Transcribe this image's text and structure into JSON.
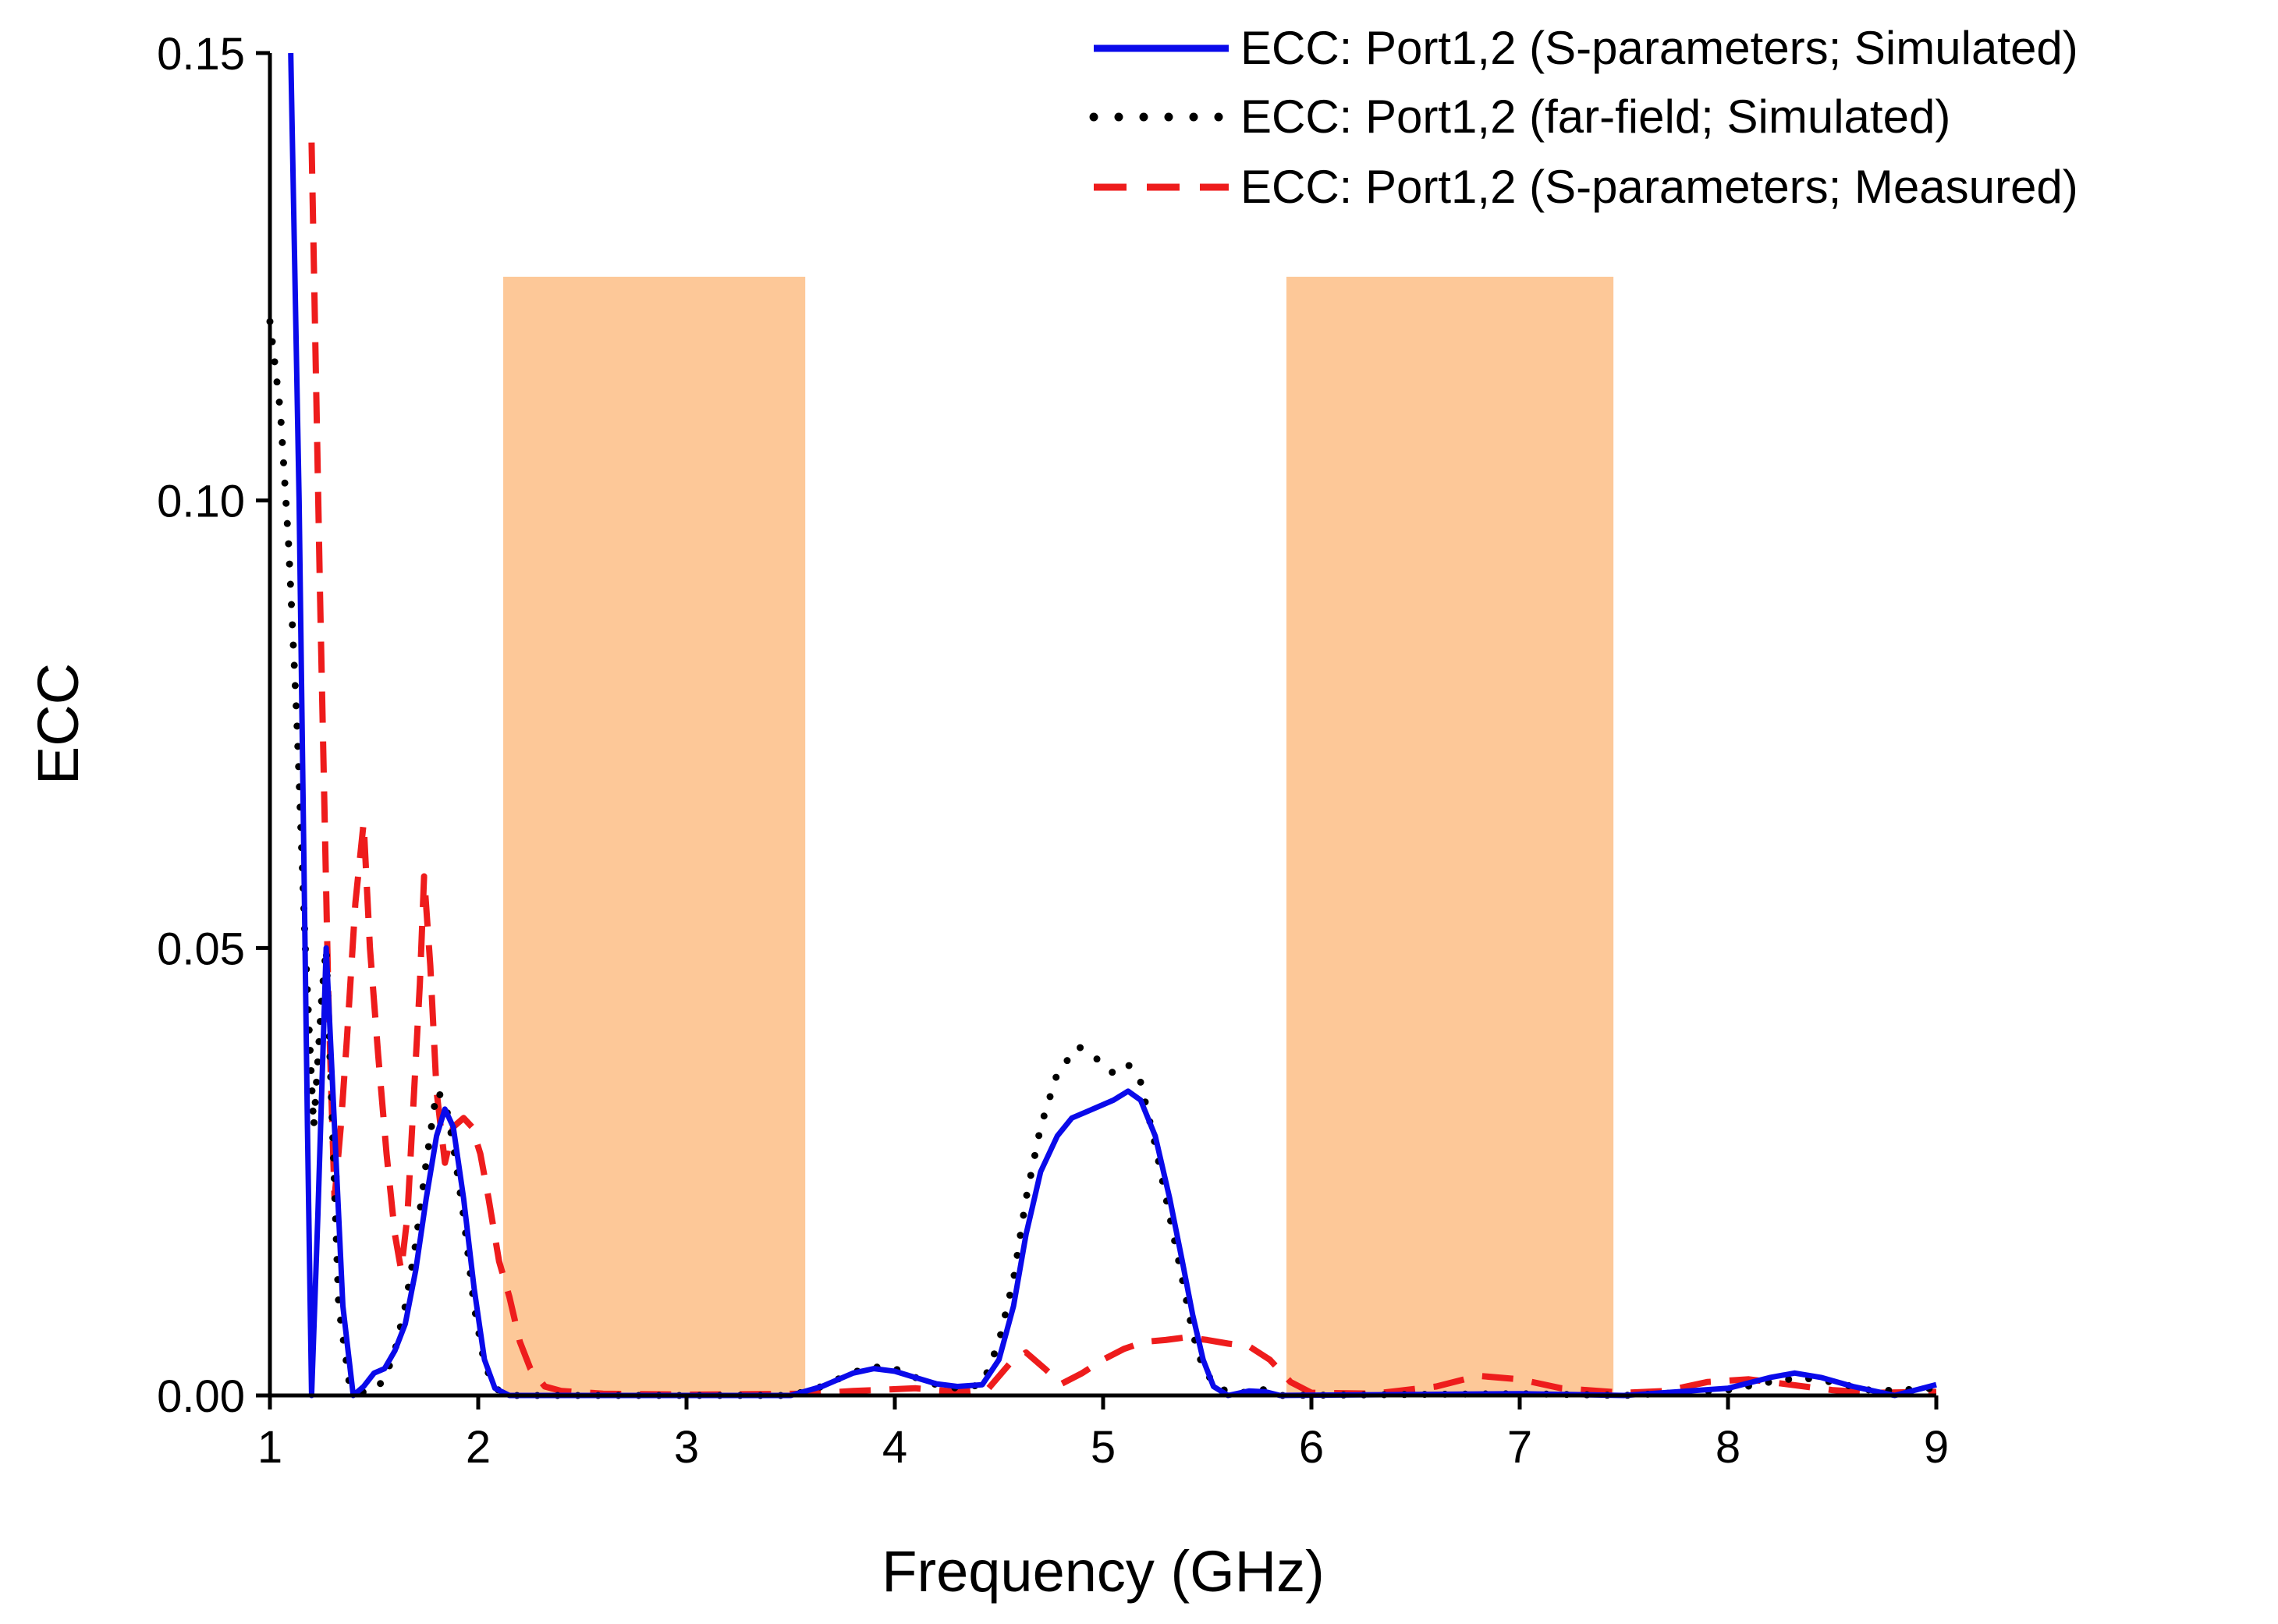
{
  "chart_data": {
    "type": "line",
    "xlabel": "Frequency (GHz)",
    "ylabel": "ECC",
    "xlim": [
      1,
      9
    ],
    "ylim": [
      0,
      0.15
    ],
    "xticks": [
      1,
      2,
      3,
      4,
      5,
      6,
      7,
      8,
      9
    ],
    "yticks": [
      0.0,
      0.05,
      0.1,
      0.15
    ],
    "ytick_labels": [
      "0.00",
      "0.05",
      "0.10",
      "0.15"
    ],
    "legend_position": "top-right",
    "shaded_bands": [
      {
        "x_start": 2.12,
        "x_end": 3.57,
        "y_top": 0.125,
        "color": "#fdc898"
      },
      {
        "x_start": 5.88,
        "x_end": 7.45,
        "y_top": 0.125,
        "color": "#fdc898"
      }
    ],
    "series": [
      {
        "name": "ECC: Port1,2 (S-parameters; Simulated)",
        "style": "solid",
        "color": "#0a0aea",
        "points": [
          [
            1.1,
            0.15
          ],
          [
            1.14,
            0.1
          ],
          [
            1.18,
            0.03
          ],
          [
            1.2,
            0.0
          ],
          [
            1.23,
            0.02
          ],
          [
            1.27,
            0.05
          ],
          [
            1.31,
            0.03
          ],
          [
            1.35,
            0.01
          ],
          [
            1.4,
            0.0
          ],
          [
            1.45,
            0.001
          ],
          [
            1.5,
            0.0025
          ],
          [
            1.55,
            0.003
          ],
          [
            1.6,
            0.005
          ],
          [
            1.65,
            0.008
          ],
          [
            1.7,
            0.014
          ],
          [
            1.75,
            0.022
          ],
          [
            1.8,
            0.029
          ],
          [
            1.84,
            0.032
          ],
          [
            1.88,
            0.03
          ],
          [
            1.93,
            0.022
          ],
          [
            1.98,
            0.012
          ],
          [
            2.03,
            0.004
          ],
          [
            2.08,
            0.0008
          ],
          [
            2.15,
            0.0
          ],
          [
            3.5,
            0.0
          ],
          [
            3.65,
            0.001
          ],
          [
            3.8,
            0.0025
          ],
          [
            3.9,
            0.003
          ],
          [
            4.0,
            0.0027
          ],
          [
            4.1,
            0.002
          ],
          [
            4.2,
            0.0013
          ],
          [
            4.3,
            0.001
          ],
          [
            4.42,
            0.0012
          ],
          [
            4.5,
            0.004
          ],
          [
            4.57,
            0.01
          ],
          [
            4.63,
            0.018
          ],
          [
            4.7,
            0.025
          ],
          [
            4.78,
            0.029
          ],
          [
            4.85,
            0.031
          ],
          [
            4.95,
            0.032
          ],
          [
            5.05,
            0.033
          ],
          [
            5.12,
            0.034
          ],
          [
            5.18,
            0.033
          ],
          [
            5.25,
            0.029
          ],
          [
            5.32,
            0.022
          ],
          [
            5.38,
            0.015
          ],
          [
            5.43,
            0.009
          ],
          [
            5.48,
            0.004
          ],
          [
            5.53,
            0.001
          ],
          [
            5.6,
            0.0
          ],
          [
            5.7,
            0.0005
          ],
          [
            5.78,
            0.0004
          ],
          [
            5.85,
            0.0
          ],
          [
            7.0,
            0.0002
          ],
          [
            7.5,
            0.0
          ],
          [
            8.0,
            0.0008
          ],
          [
            8.2,
            0.002
          ],
          [
            8.32,
            0.0025
          ],
          [
            8.45,
            0.002
          ],
          [
            8.6,
            0.001
          ],
          [
            8.8,
            0.0
          ],
          [
            9.0,
            0.0012
          ]
        ]
      },
      {
        "name": "ECC: Port1,2 (far-field; Simulated)",
        "style": "dotted",
        "color": "#000000",
        "points": [
          [
            1.0,
            0.12
          ],
          [
            1.05,
            0.11
          ],
          [
            1.09,
            0.095
          ],
          [
            1.13,
            0.075
          ],
          [
            1.17,
            0.05
          ],
          [
            1.21,
            0.03
          ],
          [
            1.25,
            0.045
          ],
          [
            1.27,
            0.05
          ],
          [
            1.3,
            0.03
          ],
          [
            1.33,
            0.01
          ],
          [
            1.38,
            0.0015
          ],
          [
            1.43,
            0.0003
          ],
          [
            1.5,
            0.0006
          ],
          [
            1.55,
            0.0018
          ],
          [
            1.6,
            0.005
          ],
          [
            1.65,
            0.01
          ],
          [
            1.7,
            0.017
          ],
          [
            1.75,
            0.026
          ],
          [
            1.8,
            0.034
          ],
          [
            1.84,
            0.033
          ],
          [
            1.88,
            0.028
          ],
          [
            1.93,
            0.02
          ],
          [
            1.98,
            0.01
          ],
          [
            2.03,
            0.0035
          ],
          [
            2.08,
            0.0008
          ],
          [
            2.15,
            0.0
          ],
          [
            3.5,
            0.0
          ],
          [
            3.65,
            0.001
          ],
          [
            3.8,
            0.0026
          ],
          [
            3.9,
            0.0032
          ],
          [
            4.0,
            0.003
          ],
          [
            4.1,
            0.002
          ],
          [
            4.2,
            0.0012
          ],
          [
            4.3,
            0.0008
          ],
          [
            4.42,
            0.0012
          ],
          [
            4.5,
            0.006
          ],
          [
            4.57,
            0.013
          ],
          [
            4.63,
            0.022
          ],
          [
            4.7,
            0.03
          ],
          [
            4.78,
            0.036
          ],
          [
            4.88,
            0.039
          ],
          [
            4.95,
            0.038
          ],
          [
            5.05,
            0.036
          ],
          [
            5.12,
            0.037
          ],
          [
            5.18,
            0.035
          ],
          [
            5.25,
            0.028
          ],
          [
            5.32,
            0.02
          ],
          [
            5.38,
            0.013
          ],
          [
            5.43,
            0.007
          ],
          [
            5.48,
            0.003
          ],
          [
            5.55,
            0.0008
          ],
          [
            5.65,
            0.0002
          ],
          [
            5.75,
            0.0008
          ],
          [
            5.85,
            0.0
          ],
          [
            7.0,
            0.0002
          ],
          [
            7.5,
            0.0
          ],
          [
            8.0,
            0.0006
          ],
          [
            8.2,
            0.0015
          ],
          [
            8.35,
            0.002
          ],
          [
            8.5,
            0.0015
          ],
          [
            8.7,
            0.0005
          ],
          [
            9.0,
            0.0008
          ]
        ]
      },
      {
        "name": "ECC: Port1,2 (S-parameters; Measured)",
        "style": "dashed",
        "color": "#ee1c1c",
        "points": [
          [
            1.2,
            0.14
          ],
          [
            1.24,
            0.09
          ],
          [
            1.28,
            0.045
          ],
          [
            1.31,
            0.022
          ],
          [
            1.34,
            0.03
          ],
          [
            1.37,
            0.04
          ],
          [
            1.41,
            0.055
          ],
          [
            1.45,
            0.064
          ],
          [
            1.48,
            0.05
          ],
          [
            1.52,
            0.038
          ],
          [
            1.56,
            0.027
          ],
          [
            1.6,
            0.018
          ],
          [
            1.63,
            0.014
          ],
          [
            1.66,
            0.02
          ],
          [
            1.69,
            0.033
          ],
          [
            1.72,
            0.046
          ],
          [
            1.74,
            0.058
          ],
          [
            1.77,
            0.048
          ],
          [
            1.8,
            0.034
          ],
          [
            1.84,
            0.026
          ],
          [
            1.88,
            0.03
          ],
          [
            1.93,
            0.031
          ],
          [
            1.97,
            0.03
          ],
          [
            2.01,
            0.027
          ],
          [
            2.05,
            0.022
          ],
          [
            2.1,
            0.015
          ],
          [
            2.15,
            0.011
          ],
          [
            2.2,
            0.006
          ],
          [
            2.25,
            0.003
          ],
          [
            2.32,
            0.001
          ],
          [
            2.4,
            0.0005
          ],
          [
            2.6,
            0.0002
          ],
          [
            3.0,
            0.0001
          ],
          [
            3.6,
            0.0002
          ],
          [
            3.8,
            0.0005
          ],
          [
            4.1,
            0.0008
          ],
          [
            4.3,
            0.0004
          ],
          [
            4.45,
            0.0008
          ],
          [
            4.55,
            0.0035
          ],
          [
            4.63,
            0.0048
          ],
          [
            4.72,
            0.003
          ],
          [
            4.8,
            0.0013
          ],
          [
            4.9,
            0.0025
          ],
          [
            5.0,
            0.004
          ],
          [
            5.1,
            0.0052
          ],
          [
            5.2,
            0.006
          ],
          [
            5.3,
            0.0062
          ],
          [
            5.4,
            0.0065
          ],
          [
            5.5,
            0.0062
          ],
          [
            5.6,
            0.0058
          ],
          [
            5.7,
            0.0055
          ],
          [
            5.8,
            0.004
          ],
          [
            5.9,
            0.0015
          ],
          [
            6.0,
            0.0003
          ],
          [
            6.3,
            0.0002
          ],
          [
            6.6,
            0.001
          ],
          [
            6.8,
            0.0022
          ],
          [
            7.0,
            0.0018
          ],
          [
            7.2,
            0.0008
          ],
          [
            7.5,
            0.0003
          ],
          [
            7.7,
            0.0005
          ],
          [
            7.9,
            0.0015
          ],
          [
            8.1,
            0.0018
          ],
          [
            8.3,
            0.0012
          ],
          [
            8.5,
            0.0006
          ],
          [
            8.7,
            0.0003
          ],
          [
            9.0,
            0.0004
          ]
        ]
      }
    ]
  }
}
